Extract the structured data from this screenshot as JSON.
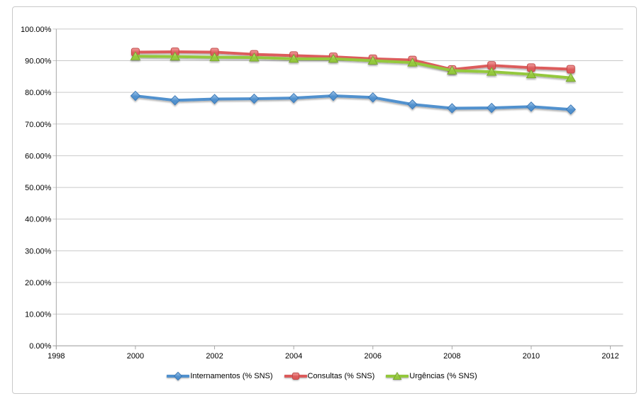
{
  "chart_data": {
    "type": "line",
    "x": [
      2000,
      2001,
      2002,
      2003,
      2004,
      2005,
      2006,
      2007,
      2008,
      2009,
      2010,
      2011
    ],
    "series": [
      {
        "name": "Internamentos (% SNS)",
        "marker": "diamond",
        "color": "#5191CE",
        "color_light": "#A6CAEC",
        "color_dark": "#3C7AB8",
        "values": [
          78.9,
          77.5,
          77.9,
          78.0,
          78.2,
          78.9,
          78.4,
          76.2,
          75.0,
          75.1,
          75.5,
          74.6
        ]
      },
      {
        "name": "Consultas (% SNS)",
        "marker": "square",
        "color": "#DC5B5B",
        "color_light": "#F2A0A0",
        "color_dark": "#C24848",
        "values": [
          92.7,
          92.8,
          92.7,
          92.0,
          91.6,
          91.2,
          90.6,
          90.2,
          87.2,
          88.5,
          87.8,
          87.3
        ]
      },
      {
        "name": "Urgências (% SNS)",
        "marker": "triangle",
        "color": "#94C83D",
        "color_light": "#C9E590",
        "color_dark": "#79A82E",
        "values": [
          91.4,
          91.3,
          91.1,
          91.0,
          90.6,
          90.6,
          90.0,
          89.4,
          86.9,
          86.5,
          85.7,
          84.6
        ]
      }
    ],
    "x_axis": {
      "min": 1998,
      "max": 2012,
      "tick_labels": [
        "1998",
        "2000",
        "2002",
        "2004",
        "2006",
        "2008",
        "2010",
        "2012"
      ]
    },
    "y_axis": {
      "min": 0,
      "max": 100,
      "tick_labels": [
        "0.00%",
        "10.00%",
        "20.00%",
        "30.00%",
        "40.00%",
        "50.00%",
        "60.00%",
        "70.00%",
        "80.00%",
        "90.00%",
        "100.00%"
      ]
    },
    "grid": "horizontal",
    "legend_position": "bottom",
    "axis_color": "#a6a6a6",
    "grid_color": "#c9c9c9",
    "text_color": "#000000"
  }
}
